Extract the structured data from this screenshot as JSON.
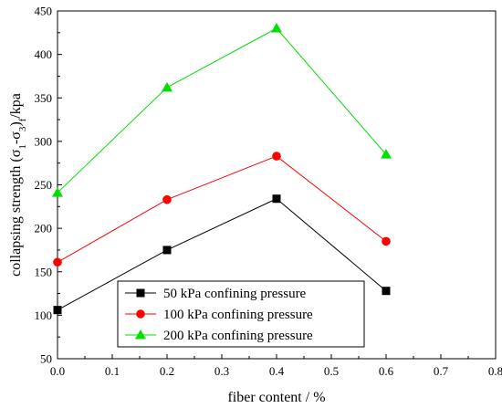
{
  "chart_data": {
    "type": "line",
    "xlabel": "fiber content / %",
    "ylabel_parts": {
      "pre": "collapsing strength (σ",
      "sub1": "1",
      "mid": "-σ",
      "sub2": "3",
      "close": ")",
      "sub3": "f",
      "post": "/kpa"
    },
    "xlim": [
      0.0,
      0.8
    ],
    "ylim": [
      50,
      450
    ],
    "xticks": [
      "0.0",
      "0.1",
      "0.2",
      "0.3",
      "0.4",
      "0.5",
      "0.6",
      "0.7",
      "0.8"
    ],
    "yticks": [
      "50",
      "100",
      "150",
      "200",
      "250",
      "300",
      "350",
      "400",
      "450"
    ],
    "grid": false,
    "legend_position": "bottom-center",
    "x": [
      0.0,
      0.2,
      0.4,
      0.6
    ],
    "series": [
      {
        "name": "50 kPa confining pressure",
        "values": [
          106,
          175,
          234,
          128
        ],
        "color": "#000000",
        "marker": "square"
      },
      {
        "name": "100 kPa confining pressure",
        "values": [
          161,
          233,
          283,
          185
        ],
        "color": "#ff0000",
        "marker": "circle"
      },
      {
        "name": "200 kPa confining pressure",
        "values": [
          241,
          362,
          430,
          285
        ],
        "color": "#00e000",
        "marker": "triangle"
      }
    ]
  }
}
